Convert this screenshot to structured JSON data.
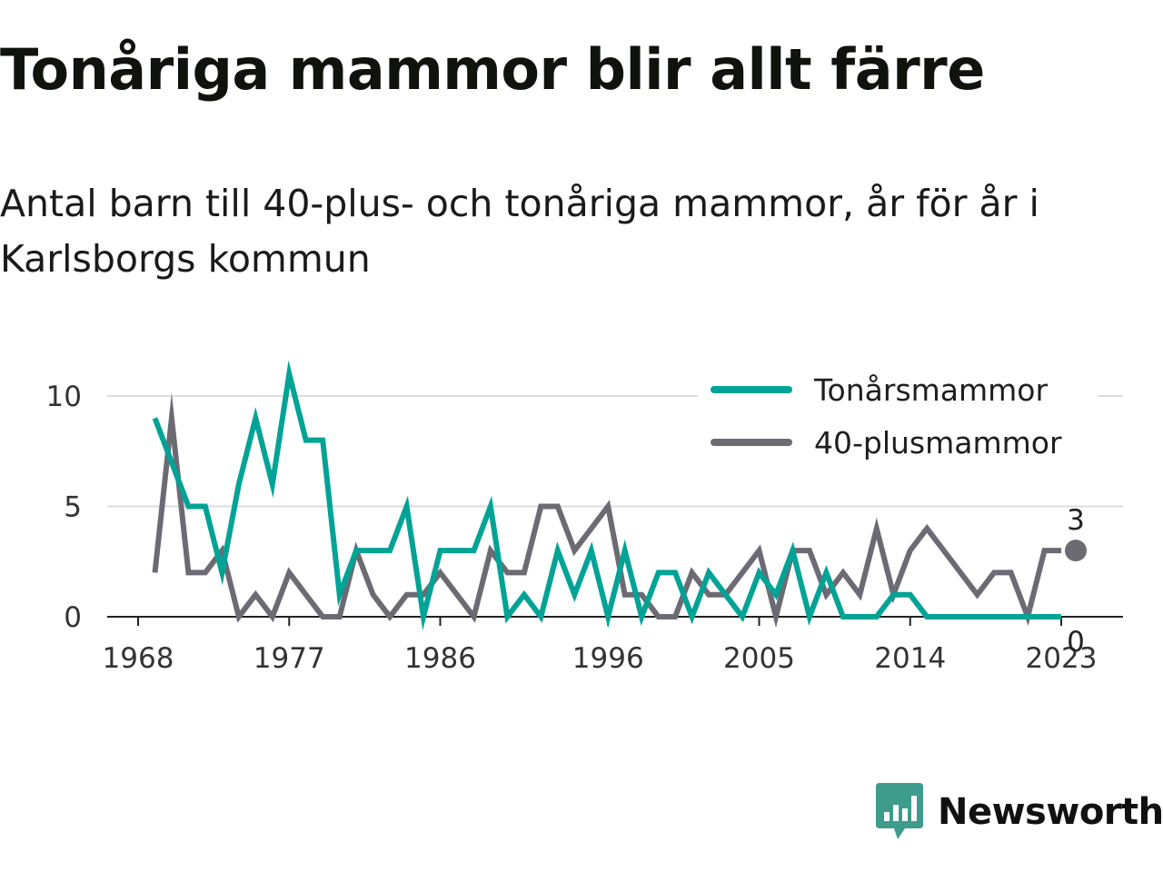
{
  "title": "Tonåriga mammor blir allt färre",
  "subtitle": "Antal barn till 40-plus- och tonåriga mammor, år för år i Karlsborgs kommun",
  "logo": {
    "text": "Newsworthy",
    "color": "#3d9c8c",
    "icon": "bar-chart-speech-bubble-icon"
  },
  "colors": {
    "grid": "#dddddd",
    "axis": "#222222"
  },
  "chart_data": {
    "type": "line",
    "x": [
      1969,
      1970,
      1971,
      1972,
      1973,
      1974,
      1975,
      1976,
      1977,
      1978,
      1979,
      1980,
      1981,
      1982,
      1983,
      1984,
      1985,
      1986,
      1987,
      1988,
      1989,
      1990,
      1991,
      1992,
      1993,
      1994,
      1995,
      1996,
      1997,
      1998,
      1999,
      2000,
      2001,
      2002,
      2003,
      2004,
      2005,
      2006,
      2007,
      2008,
      2009,
      2010,
      2011,
      2012,
      2013,
      2014,
      2015,
      2016,
      2017,
      2018,
      2019,
      2020,
      2021,
      2022,
      2023
    ],
    "x_ticks": [
      1968,
      1977,
      1986,
      1996,
      2005,
      2014,
      2023
    ],
    "y_ticks": [
      0,
      5,
      10
    ],
    "xlim": [
      1968,
      2024.5
    ],
    "ylim": [
      0,
      11.5
    ],
    "grid": true,
    "legend_position": "top-right",
    "series": [
      {
        "name": "Tonårsmammor",
        "color": "#00a396",
        "values": [
          9,
          7,
          5,
          5,
          2,
          6,
          9,
          6,
          11,
          8,
          8,
          1,
          3,
          3,
          3,
          5,
          0,
          3,
          3,
          3,
          5,
          0,
          1,
          0,
          3,
          1,
          3,
          0,
          3,
          0,
          2,
          2,
          0,
          2,
          1,
          0,
          2,
          1,
          3,
          0,
          2,
          0,
          0,
          0,
          1,
          1,
          0,
          0,
          0,
          0,
          0,
          0,
          0,
          0,
          0
        ],
        "end_label": "0"
      },
      {
        "name": "40-plusmammor",
        "color": "#6c6b73",
        "values": [
          2,
          9,
          2,
          2,
          3,
          0,
          1,
          0,
          2,
          1,
          0,
          0,
          3,
          1,
          0,
          1,
          1,
          2,
          1,
          0,
          3,
          2,
          2,
          5,
          5,
          3,
          4,
          5,
          1,
          1,
          0,
          0,
          2,
          1,
          1,
          2,
          3,
          0,
          3,
          3,
          1,
          2,
          1,
          4,
          1,
          3,
          4,
          3,
          2,
          1,
          2,
          2,
          0,
          3,
          3
        ],
        "end_label": "3"
      }
    ]
  }
}
